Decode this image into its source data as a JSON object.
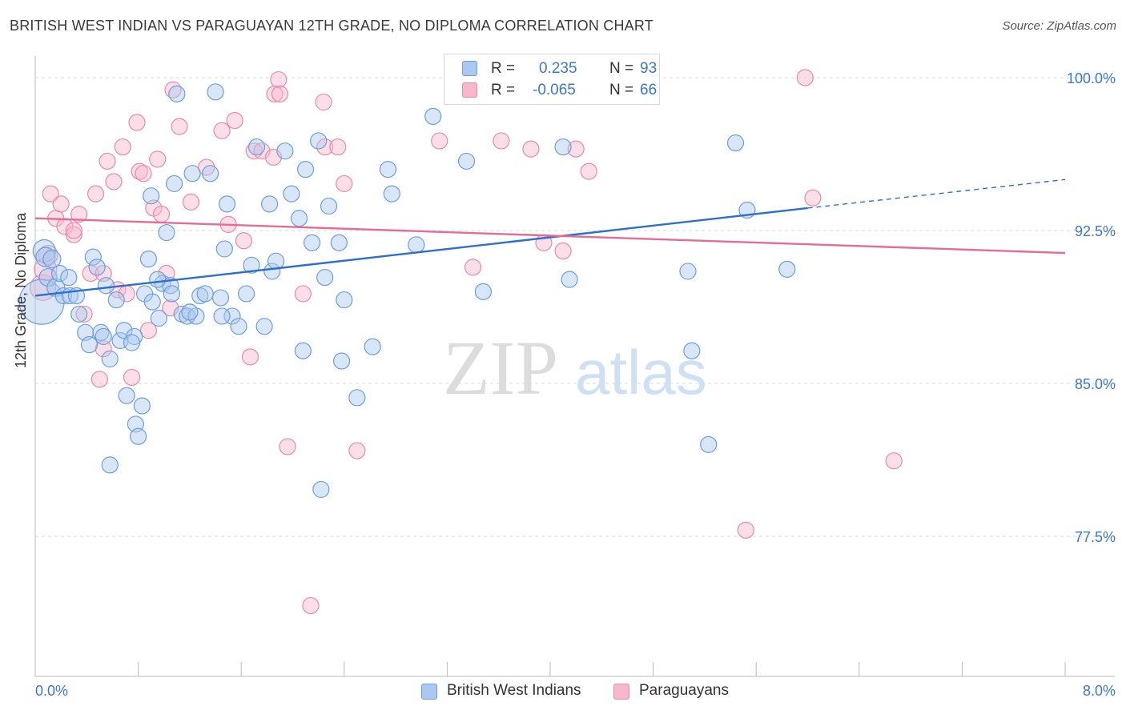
{
  "title": "BRITISH WEST INDIAN VS PARAGUAYAN 12TH GRADE, NO DIPLOMA CORRELATION CHART",
  "source": "Source: ZipAtlas.com",
  "watermark": {
    "zip": "ZIP",
    "atlas": "atlas"
  },
  "stats": {
    "row1": {
      "r_label": "R =",
      "r_value": "0.235",
      "n_label": "N =",
      "n_value": "93"
    },
    "row2": {
      "r_label": "R =",
      "r_value": "-0.065",
      "n_label": "N =",
      "n_value": "66"
    }
  },
  "legend": {
    "series1": "British West Indians",
    "series2": "Paraguayans"
  },
  "colors": {
    "blue_fill": "#aac8f0",
    "blue_stroke": "#6a9edc",
    "blue_line": "#2b6fcf",
    "pink_fill": "#f7b8cc",
    "pink_stroke": "#e88aa8",
    "pink_line": "#e86a96",
    "value_text": "#3a78d0",
    "grid": "#d9d9d9"
  },
  "chart_data": {
    "type": "scatter",
    "title": "BRITISH WEST INDIAN VS PARAGUAYAN 12TH GRADE, NO DIPLOMA CORRELATION CHART",
    "xlabel": "",
    "ylabel": "12th Grade, No Diploma",
    "xlim": [
      0.0,
      8.0
    ],
    "ylim": [
      70.8,
      101.0
    ],
    "x_tick_labels": [
      "0.0%",
      "8.0%"
    ],
    "y_ticks": [
      77.5,
      85.0,
      92.5,
      100.0
    ],
    "y_tick_labels": [
      "77.5%",
      "85.0%",
      "92.5%",
      "100.0%"
    ],
    "grid": "horizontal dashed",
    "legend_position": "bottom-center",
    "series": [
      {
        "name": "British West Indians",
        "R": 0.235,
        "N": 93,
        "trend": {
          "x0": 0.0,
          "y0": 89.3,
          "x1": 6.0,
          "y1": 93.6,
          "dashed_to_x": 8.0,
          "dashed_to_y": 95.0
        },
        "points": [
          [
            0.05,
            89.0,
            28
          ],
          [
            0.07,
            91.5,
            14
          ],
          [
            0.08,
            91.2,
            12
          ],
          [
            0.1,
            90.2,
            11
          ],
          [
            0.13,
            91.1,
            11
          ],
          [
            0.16,
            89.7,
            11
          ],
          [
            0.19,
            90.4,
            10
          ],
          [
            0.22,
            89.3,
            10
          ],
          [
            0.26,
            90.2,
            10
          ],
          [
            0.27,
            89.3,
            10
          ],
          [
            0.32,
            89.3,
            10
          ],
          [
            0.34,
            88.4,
            10
          ],
          [
            0.39,
            87.5,
            10
          ],
          [
            0.42,
            86.9,
            10
          ],
          [
            0.45,
            91.2,
            10
          ],
          [
            0.48,
            90.7,
            10
          ],
          [
            0.51,
            87.5,
            10
          ],
          [
            0.53,
            87.3,
            10
          ],
          [
            0.55,
            89.8,
            10
          ],
          [
            0.58,
            86.2,
            10
          ],
          [
            0.63,
            89.1,
            10
          ],
          [
            0.66,
            87.1,
            10
          ],
          [
            0.69,
            87.6,
            10
          ],
          [
            0.71,
            84.4,
            10
          ],
          [
            0.77,
            87.3,
            10
          ],
          [
            0.78,
            83.0,
            10
          ],
          [
            0.8,
            82.4,
            10
          ],
          [
            0.83,
            83.9,
            10
          ],
          [
            0.85,
            89.4,
            10
          ],
          [
            0.88,
            91.1,
            10
          ],
          [
            0.9,
            94.2,
            10
          ],
          [
            0.91,
            89.0,
            10
          ],
          [
            0.96,
            88.2,
            10
          ],
          [
            0.99,
            89.9,
            10
          ],
          [
            1.02,
            92.4,
            10
          ],
          [
            1.05,
            89.8,
            10
          ],
          [
            1.06,
            89.4,
            10
          ],
          [
            1.08,
            94.8,
            10
          ],
          [
            1.1,
            99.2,
            10
          ],
          [
            1.14,
            88.4,
            10
          ],
          [
            1.18,
            88.3,
            10
          ],
          [
            1.22,
            95.3,
            10
          ],
          [
            1.25,
            88.3,
            10
          ],
          [
            1.28,
            89.3,
            10
          ],
          [
            1.32,
            89.4,
            10
          ],
          [
            1.36,
            95.3,
            10
          ],
          [
            1.4,
            99.3,
            10
          ],
          [
            1.44,
            89.2,
            10
          ],
          [
            1.47,
            91.6,
            10
          ],
          [
            1.49,
            93.8,
            10
          ],
          [
            1.53,
            88.3,
            10
          ],
          [
            1.58,
            87.8,
            10
          ],
          [
            1.64,
            89.4,
            10
          ],
          [
            1.68,
            90.8,
            10
          ],
          [
            1.72,
            96.6,
            10
          ],
          [
            1.78,
            87.8,
            10
          ],
          [
            1.82,
            93.8,
            10
          ],
          [
            1.84,
            90.5,
            10
          ],
          [
            1.87,
            91.0,
            10
          ],
          [
            1.94,
            96.4,
            10
          ],
          [
            1.99,
            94.3,
            10
          ],
          [
            2.05,
            93.1,
            10
          ],
          [
            2.08,
            86.6,
            10
          ],
          [
            2.1,
            95.5,
            10
          ],
          [
            2.15,
            91.9,
            10
          ],
          [
            2.2,
            96.9,
            10
          ],
          [
            2.25,
            90.2,
            10
          ],
          [
            2.28,
            93.7,
            10
          ],
          [
            2.36,
            91.9,
            10
          ],
          [
            2.38,
            86.1,
            10
          ],
          [
            2.4,
            89.1,
            10
          ],
          [
            2.5,
            84.3,
            10
          ],
          [
            2.62,
            86.8,
            10
          ],
          [
            2.74,
            95.5,
            10
          ],
          [
            2.77,
            94.3,
            10
          ],
          [
            2.96,
            91.8,
            10
          ],
          [
            3.09,
            98.1,
            10
          ],
          [
            3.35,
            95.9,
            10
          ],
          [
            3.48,
            89.5,
            10
          ],
          [
            4.1,
            96.6,
            10
          ],
          [
            4.15,
            90.1,
            10
          ],
          [
            5.07,
            90.5,
            10
          ],
          [
            5.1,
            86.6,
            10
          ],
          [
            5.23,
            82.0,
            10
          ],
          [
            5.44,
            96.8,
            10
          ],
          [
            5.53,
            93.5,
            10
          ],
          [
            5.84,
            90.6,
            10
          ],
          [
            2.22,
            79.8,
            10
          ],
          [
            0.58,
            81.0,
            10
          ],
          [
            1.45,
            88.3,
            10
          ],
          [
            0.75,
            87.0,
            10
          ],
          [
            1.2,
            88.5,
            10
          ],
          [
            0.95,
            90.1,
            10
          ]
        ]
      },
      {
        "name": "Paraguayans",
        "R": -0.065,
        "N": 66,
        "trend": {
          "x0": 0.0,
          "y0": 93.1,
          "x1": 8.0,
          "y1": 91.4
        },
        "points": [
          [
            0.06,
            89.7,
            16
          ],
          [
            0.08,
            90.6,
            14
          ],
          [
            0.1,
            91.3,
            12
          ],
          [
            0.12,
            94.3,
            10
          ],
          [
            0.16,
            93.1,
            10
          ],
          [
            0.2,
            93.8,
            10
          ],
          [
            0.23,
            92.7,
            10
          ],
          [
            0.3,
            92.3,
            10
          ],
          [
            0.34,
            93.3,
            10
          ],
          [
            0.38,
            88.4,
            10
          ],
          [
            0.43,
            90.4,
            10
          ],
          [
            0.47,
            94.3,
            10
          ],
          [
            0.5,
            85.2,
            10
          ],
          [
            0.53,
            86.7,
            10
          ],
          [
            0.56,
            95.9,
            10
          ],
          [
            0.61,
            94.9,
            10
          ],
          [
            0.64,
            89.6,
            10
          ],
          [
            0.68,
            96.6,
            10
          ],
          [
            0.71,
            89.4,
            10
          ],
          [
            0.75,
            85.3,
            10
          ],
          [
            0.79,
            97.8,
            10
          ],
          [
            0.81,
            95.4,
            10
          ],
          [
            0.84,
            95.3,
            10
          ],
          [
            0.88,
            87.6,
            10
          ],
          [
            0.92,
            93.6,
            10
          ],
          [
            0.95,
            96.0,
            10
          ],
          [
            0.98,
            93.3,
            10
          ],
          [
            1.02,
            90.4,
            10
          ],
          [
            1.05,
            88.7,
            10
          ],
          [
            1.07,
            99.4,
            10
          ],
          [
            1.12,
            97.6,
            10
          ],
          [
            1.21,
            93.9,
            10
          ],
          [
            1.33,
            95.6,
            10
          ],
          [
            1.45,
            97.4,
            10
          ],
          [
            1.5,
            92.8,
            10
          ],
          [
            1.55,
            97.9,
            10
          ],
          [
            1.62,
            92.0,
            10
          ],
          [
            1.67,
            86.3,
            10
          ],
          [
            1.7,
            96.4,
            10
          ],
          [
            1.76,
            96.4,
            10
          ],
          [
            1.85,
            96.1,
            10
          ],
          [
            1.86,
            99.2,
            10
          ],
          [
            1.89,
            99.9,
            10
          ],
          [
            1.9,
            99.2,
            10
          ],
          [
            1.96,
            81.9,
            10
          ],
          [
            2.08,
            89.4,
            10
          ],
          [
            2.14,
            74.1,
            10
          ],
          [
            2.24,
            98.8,
            10
          ],
          [
            2.25,
            96.6,
            10
          ],
          [
            2.35,
            96.6,
            10
          ],
          [
            2.4,
            94.8,
            10
          ],
          [
            2.5,
            81.7,
            10
          ],
          [
            3.14,
            96.9,
            10
          ],
          [
            3.4,
            90.7,
            10
          ],
          [
            3.62,
            96.9,
            10
          ],
          [
            3.85,
            96.5,
            10
          ],
          [
            3.95,
            91.9,
            10
          ],
          [
            4.1,
            91.5,
            10
          ],
          [
            4.2,
            96.5,
            10
          ],
          [
            4.3,
            95.4,
            10
          ],
          [
            5.98,
            100.0,
            10
          ],
          [
            6.04,
            94.1,
            10
          ],
          [
            6.67,
            81.2,
            10
          ],
          [
            5.52,
            77.8,
            10
          ],
          [
            0.53,
            90.4,
            10
          ],
          [
            0.3,
            92.5,
            10
          ]
        ]
      }
    ]
  }
}
